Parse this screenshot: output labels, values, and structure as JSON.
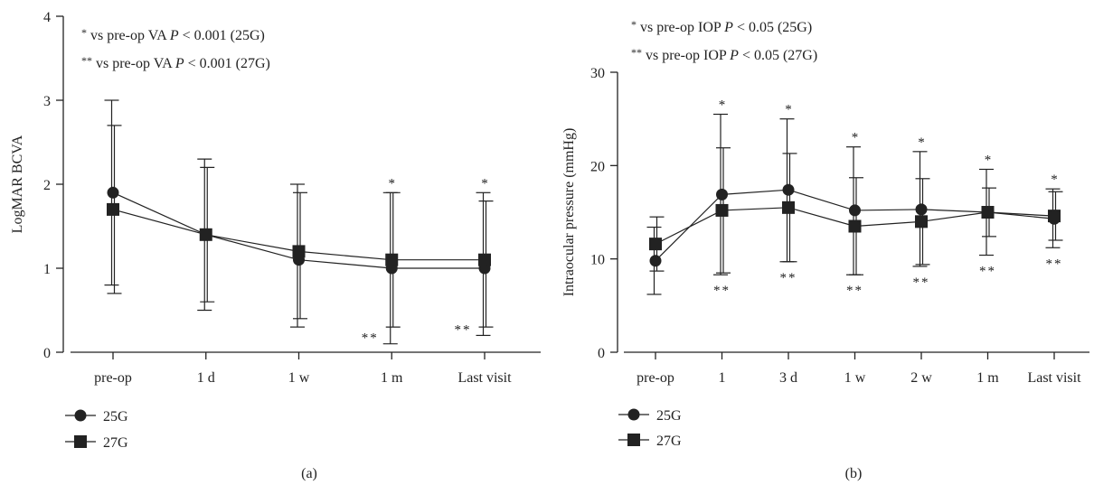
{
  "chart_data": [
    {
      "type": "line",
      "panel_label": "(a)",
      "ylabel": "LogMAR BCVA",
      "ylim": [
        0,
        4
      ],
      "yticks": [
        "0",
        "1",
        "2",
        "3",
        "4"
      ],
      "categories": [
        "pre-op",
        "1 d",
        "1 w",
        "1 m",
        "Last visit"
      ],
      "annotations": [
        {
          "stars": "*",
          "text": " vs pre-op VA ",
          "p": "P",
          "rest": " < 0.001 (25G)"
        },
        {
          "stars": "**",
          "text": " vs pre-op VA ",
          "p": "P",
          "rest": " < 0.001 (27G)"
        }
      ],
      "series": [
        {
          "name": "25G",
          "marker": "circle",
          "values": [
            1.9,
            1.4,
            1.1,
            1.0,
            1.0
          ],
          "err_high": [
            3.0,
            2.3,
            2.0,
            1.9,
            1.9
          ],
          "err_low": [
            0.8,
            0.5,
            0.3,
            0.1,
            0.2
          ]
        },
        {
          "name": "27G",
          "marker": "square",
          "values": [
            1.7,
            1.4,
            1.2,
            1.1,
            1.1
          ],
          "err_high": [
            2.7,
            2.2,
            1.9,
            1.9,
            1.8
          ],
          "err_low": [
            0.7,
            0.6,
            0.4,
            0.3,
            0.3
          ]
        }
      ],
      "star_above": [
        "",
        "",
        "",
        "*",
        "*"
      ],
      "star_below": [
        "",
        "",
        "",
        "**",
        "**"
      ]
    },
    {
      "type": "line",
      "panel_label": "(b)",
      "ylabel": "Intraocular pressure (mmHg)",
      "ylim": [
        0,
        30
      ],
      "yticks": [
        "0",
        "10",
        "20",
        "30"
      ],
      "categories": [
        "pre-op",
        "1",
        "3 d",
        "1 w",
        "2 w",
        "1 m",
        "Last visit"
      ],
      "annotations": [
        {
          "stars": "*",
          "text": " vs pre-op IOP ",
          "p": "P",
          "rest": " < 0.05 (25G)"
        },
        {
          "stars": "**",
          "text": " vs pre-op IOP ",
          "p": "P",
          "rest": " < 0.05 (27G)"
        }
      ],
      "series": [
        {
          "name": "25G",
          "marker": "circle",
          "values": [
            9.8,
            16.9,
            17.4,
            15.2,
            15.3,
            15.0,
            14.3
          ],
          "err_high": [
            13.4,
            25.5,
            25.0,
            22.0,
            21.5,
            19.6,
            17.5
          ],
          "err_low": [
            6.2,
            8.3,
            9.7,
            8.3,
            9.2,
            10.4,
            11.2
          ]
        },
        {
          "name": "27G",
          "marker": "square",
          "values": [
            11.6,
            15.2,
            15.5,
            13.5,
            14.0,
            15.0,
            14.6
          ],
          "err_high": [
            14.5,
            21.9,
            21.3,
            18.7,
            18.6,
            17.6,
            17.2
          ],
          "err_low": [
            8.7,
            8.5,
            9.7,
            8.3,
            9.4,
            12.4,
            12.0
          ]
        }
      ],
      "star_above": [
        "",
        "*",
        "*",
        "*",
        "*",
        "*",
        "*"
      ],
      "star_below": [
        "",
        "**",
        "**",
        "**",
        "**",
        "**",
        "**"
      ]
    }
  ]
}
